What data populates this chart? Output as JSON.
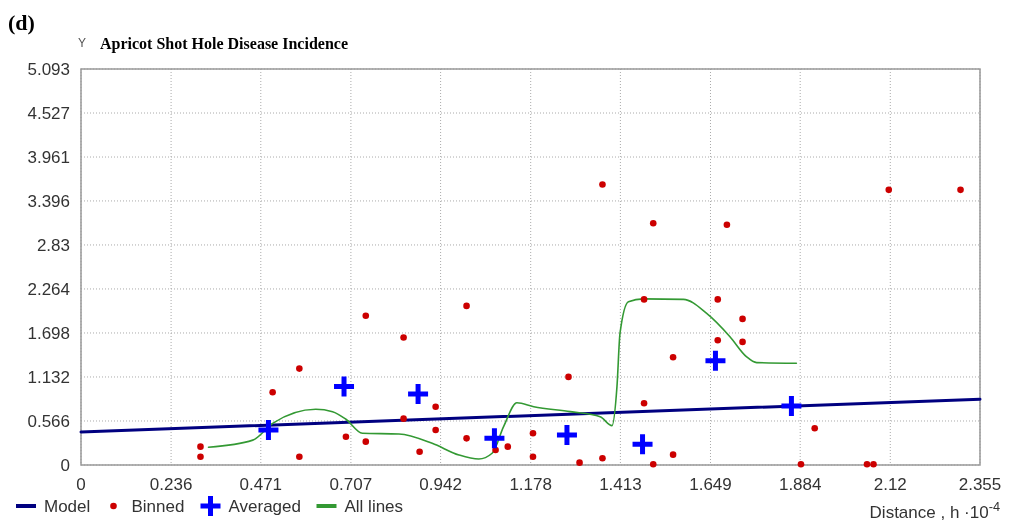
{
  "chart_data": {
    "type": "scatter",
    "title": "Apricot Shot Hole Disease Incidence",
    "ylabel": "Y",
    "xlabel": "Distance , h ·10$^{-4}$",
    "annotations": [
      "(d)"
    ],
    "xlim": [
      0,
      2.355
    ],
    "xticks": [
      0,
      0.236,
      0.471,
      0.707,
      0.942,
      1.178,
      1.413,
      1.649,
      1.884,
      2.12,
      2.355
    ],
    "ylim": [
      0,
      5.093
    ],
    "yticks": [
      0,
      0.566,
      1.132,
      1.698,
      2.264,
      2.83,
      3.396,
      3.961,
      4.527,
      5.093
    ],
    "grid": true,
    "legend": "bottom",
    "series": [
      {
        "name": "Model",
        "type": "line",
        "marker": "none",
        "color": "#000080",
        "x": [
          0,
          2.355
        ],
        "values": [
          0.425,
          0.846
        ]
      },
      {
        "name": "Binned",
        "marker": "circle",
        "color": "#cc0000",
        "x": [
          0.313,
          0.313,
          0.502,
          0.572,
          0.572,
          0.746,
          0.746,
          0.694,
          0.845,
          0.845,
          0.887,
          0.929,
          0.929,
          1.01,
          1.01,
          1.086,
          1.118,
          1.184,
          1.184,
          1.277,
          1.306,
          1.366,
          1.475,
          1.475,
          1.499,
          1.551,
          1.551,
          1.668,
          1.668,
          1.733,
          1.733,
          1.865,
          1.886,
          1.922,
          2.059,
          2.076,
          1.366,
          1.499,
          1.692,
          2.116,
          2.304
        ],
        "values": [
          0.236,
          0.107,
          0.936,
          1.24,
          0.107,
          1.92,
          0.3,
          0.364,
          1.64,
          0.596,
          0.171,
          0.75,
          0.45,
          2.046,
          0.343,
          0.193,
          0.236,
          0.408,
          0.107,
          1.133,
          0.03,
          0.086,
          2.13,
          0.794,
          0.009,
          1.386,
          0.133,
          2.13,
          1.605,
          1.879,
          1.583,
          null,
          0.009,
          0.472,
          0.009,
          0.009,
          3.607,
          3.11,
          3.089,
          3.539,
          3.539
        ]
      },
      {
        "name": "Averaged",
        "marker": "cross",
        "color": "#0000ff",
        "x": [
          0.491,
          0.689,
          0.883,
          1.083,
          1.273,
          1.471,
          1.662,
          1.861
        ],
        "values": [
          0.45,
          1.008,
          0.914,
          0.343,
          0.386,
          0.266,
          1.342,
          0.759
        ]
      },
      {
        "name": "All lines",
        "type": "line",
        "marker": "none",
        "color": "#339933",
        "x": [
          0.334,
          0.45,
          0.502,
          0.615,
          0.659,
          0.694,
          0.737,
          0.833,
          0.92,
          0.99,
          1.042,
          1.077,
          1.107,
          1.142,
          1.186,
          1.282,
          1.36,
          1.391,
          1.404,
          1.412,
          1.434,
          1.473,
          1.578,
          1.639,
          1.7,
          1.743,
          1.77,
          1.874
        ],
        "values": [
          0.228,
          0.32,
          0.536,
          0.717,
          0.686,
          0.588,
          0.408,
          0.399,
          0.279,
          0.129,
          0.077,
          0.151,
          0.493,
          0.8,
          0.75,
          0.686,
          0.62,
          0.506,
          1.008,
          1.695,
          2.1,
          2.136,
          2.13,
          1.95,
          1.65,
          1.394,
          1.317,
          1.309
        ]
      }
    ]
  }
}
